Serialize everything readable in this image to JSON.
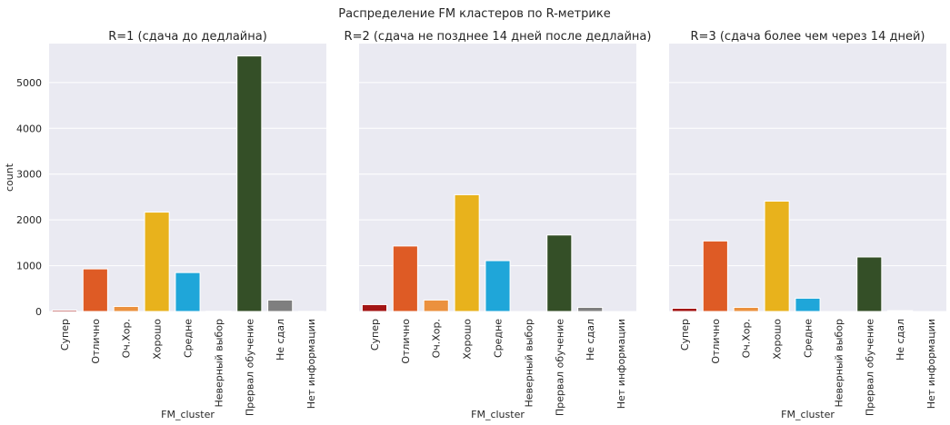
{
  "suptitle": "Распределение FM кластеров по R-метрике",
  "chart_data": [
    {
      "type": "bar",
      "title": "R=1 (сдача до дедлайна)",
      "xlabel": "FM_cluster",
      "ylabel": "count",
      "ylim": [
        0,
        5850
      ],
      "yticks": [
        0,
        1000,
        2000,
        3000,
        4000,
        5000
      ],
      "grid": true,
      "categories": [
        "Супер",
        "Отлично",
        "Оч.Хор.",
        "Хорошо",
        "Средне",
        "Неверный выбор",
        "Прервал обучение",
        "Не сдал",
        "Нет информации"
      ],
      "values": [
        30,
        930,
        110,
        2170,
        850,
        5,
        5580,
        250,
        3
      ]
    },
    {
      "type": "bar",
      "title": "R=2 (сдача не позднее 14 дней после дедлайна)",
      "xlabel": "FM_cluster",
      "ylabel": "",
      "ylim": [
        0,
        5850
      ],
      "yticks": [
        0,
        1000,
        2000,
        3000,
        4000,
        5000
      ],
      "grid": true,
      "categories": [
        "Супер",
        "Отлично",
        "Оч.Хор.",
        "Хорошо",
        "Средне",
        "Неверный выбор",
        "Прервал обучение",
        "Не сдал",
        "Нет информации"
      ],
      "values": [
        150,
        1430,
        250,
        2550,
        1110,
        0,
        1670,
        90,
        0
      ]
    },
    {
      "type": "bar",
      "title": "R=3 (сдача более чем через 14 дней)",
      "xlabel": "FM_cluster",
      "ylabel": "",
      "ylim": [
        0,
        5850
      ],
      "yticks": [
        0,
        1000,
        2000,
        3000,
        4000,
        5000
      ],
      "grid": true,
      "categories": [
        "Супер",
        "Отлично",
        "Оч.Хор.",
        "Хорошо",
        "Средне",
        "Неверный выбор",
        "Прервал обучение",
        "Не сдал",
        "Нет информации"
      ],
      "values": [
        70,
        1540,
        90,
        2410,
        290,
        0,
        1190,
        20,
        0
      ]
    }
  ],
  "colors": [
    "#a31515",
    "#de5b25",
    "#eb913e",
    "#e8b21c",
    "#1fa6d9",
    "#7a7a7a",
    "#344f27",
    "#7f7f7f",
    "#7f7f7f"
  ]
}
